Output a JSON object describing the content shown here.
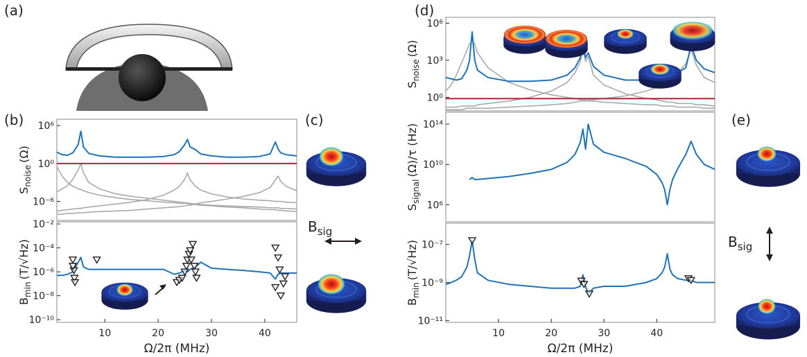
{
  "panel_labels": [
    "(a)",
    "(b)",
    "(c)",
    "(d)",
    "(e)"
  ],
  "bsig_labels": [
    {
      "main": "B",
      "sub": "sig"
    },
    {
      "main": "B",
      "sub": "sig"
    }
  ],
  "chart_data": [
    {
      "type": "line",
      "ylog": true,
      "xlim": [
        1,
        46
      ],
      "ylim": [
        1e-09,
        10000000.0
      ],
      "yticks": [
        {
          "value": 1000000,
          "label": "10⁶"
        },
        {
          "value": 1,
          "label": "10⁰"
        },
        {
          "value": 1e-06,
          "label": "10⁻⁶"
        }
      ],
      "ylabel": {
        "main": "S",
        "sub": "noise",
        "rest": "(Ω)"
      },
      "x": [
        1,
        2,
        3,
        4,
        5,
        5.5,
        6,
        7,
        9,
        12,
        15,
        18,
        21,
        23,
        24,
        25,
        25.5,
        26,
        27,
        28,
        30,
        33,
        36,
        39,
        41,
        42,
        42.5,
        43,
        44,
        46
      ],
      "series": [
        {
          "color": "#a9a9a9",
          "values": [
            3.2e-05,
            0.0001,
            0.00032,
            0.0032,
            0.1,
            1,
            0.032,
            0.001,
            0.0001,
            1.6e-05,
            6.3e-06,
            3.2e-06,
            1.6e-06,
            1e-06,
            7.9e-07,
            6.3e-07,
            6.3e-07,
            5e-07,
            4e-07,
            3.2e-07,
            2.5e-07,
            2e-07,
            1.6e-07,
            1.3e-07,
            1e-07,
            1e-07,
            1e-07,
            7.9e-08,
            7.9e-08,
            6.3e-08
          ]
        },
        {
          "color": "#a9a9a9",
          "values": [
            3.2e-08,
            4e-08,
            5e-08,
            6.3e-08,
            7.9e-08,
            7.9e-08,
            1e-07,
            1.3e-07,
            2e-07,
            4e-07,
            7.9e-07,
            2e-06,
            1e-05,
            6.3e-05,
            0.00025,
            0.0032,
            0.032,
            0.0025,
            0.00025,
            6.3e-05,
            1.6e-05,
            5e-06,
            2.5e-06,
            1.6e-06,
            1.3e-06,
            1e-06,
            1e-06,
            1e-06,
            7.9e-07,
            6.3e-07
          ]
        },
        {
          "color": "#a9a9a9",
          "values": [
            1e-08,
            1e-08,
            1.3e-08,
            1.3e-08,
            1.6e-08,
            1.6e-08,
            1.6e-08,
            2e-08,
            2.5e-08,
            3.2e-08,
            4e-08,
            6.3e-08,
            1e-07,
            1.3e-07,
            1.6e-07,
            2e-07,
            2.5e-07,
            2.5e-07,
            4e-07,
            6.3e-07,
            1e-06,
            2.5e-06,
            6.3e-06,
            2.5e-05,
            0.00016,
            0.0025,
            0.01,
            0.0016,
            0.00025,
            5e-05
          ]
        },
        {
          "color": "#a9a9a9",
          "values": [
            0.32,
            0.01,
            0.001,
            0.00025,
            0.0001,
            7.9e-05,
            5e-05,
            2.5e-05,
            1e-05,
            4e-06,
            2e-06,
            1.3e-06,
            7.9e-07,
            6.3e-07,
            5e-07,
            5e-07,
            5e-07,
            4e-07,
            3.2e-07,
            2.5e-07,
            2e-07,
            1.3e-07,
            1e-07,
            6.3e-08,
            5e-08,
            5e-08,
            4e-08,
            4e-08,
            3.2e-08,
            2.5e-08
          ]
        },
        {
          "color": "#b0233a",
          "values": [
            1,
            1,
            1,
            1,
            1,
            1,
            1,
            1,
            1,
            1,
            1,
            1,
            1,
            1,
            1,
            1,
            1,
            1,
            1,
            1,
            1,
            1,
            1,
            1,
            1,
            1,
            1,
            1,
            1,
            1
          ]
        },
        {
          "color": "#1f72b5",
          "values": [
            63,
            25,
            20,
            50,
            1000,
            126000,
            400,
            40,
            16,
            10,
            10,
            10,
            13,
            25,
            79,
            1000,
            6300,
            400,
            160,
            32,
            16,
            10,
            10,
            13,
            32,
            2500,
            200,
            50,
            25,
            16
          ]
        }
      ]
    },
    {
      "type": "line",
      "ylog": true,
      "xlim": [
        1,
        46
      ],
      "ylim": [
        6e-11,
        0.015
      ],
      "yticks": [
        {
          "value": 0.01,
          "label": "10⁻²"
        },
        {
          "value": 0.0001,
          "label": "10⁻⁴"
        },
        {
          "value": 1e-06,
          "label": "10⁻⁶"
        },
        {
          "value": 1e-08,
          "label": "10⁻⁸"
        },
        {
          "value": 1e-10,
          "label": "10⁻¹⁰"
        }
      ],
      "xticks": [
        10,
        20,
        30,
        40
      ],
      "xlabel": "Ω/2π (MHz)",
      "ylabel": {
        "main": "B",
        "sub": "min",
        "rest": "(T/√Hz)"
      },
      "x": [
        1,
        2,
        3,
        4,
        5,
        5.5,
        6,
        7,
        9,
        12,
        15,
        18,
        21,
        23,
        24,
        25,
        25.5,
        26,
        27,
        28,
        30,
        33,
        36,
        39,
        41,
        42,
        42.5,
        43,
        44,
        46
      ],
      "series": [
        {
          "color": "#1f72b5",
          "values": [
            5e-07,
            5e-07,
            6.3e-07,
            1e-06,
            6.3e-06,
            1.6e-05,
            2.5e-06,
            1.6e-06,
            1.6e-06,
            1.6e-06,
            1.6e-06,
            1.6e-06,
            1.6e-06,
            6.3e-07,
            7.9e-07,
            1.3e-06,
            1e-06,
            1.6e-06,
            2.5e-06,
            6.3e-06,
            2e-06,
            1.6e-06,
            1.3e-06,
            1e-06,
            7.9e-07,
            2.5e-07,
            6.3e-07,
            7.9e-07,
            7.9e-07,
            7.9e-07
          ]
        },
        {
          "color": "#231f20",
          "marker": "triangle",
          "x": [
            4,
            4.2,
            4,
            4.3,
            4.4,
            8.5,
            23.5,
            24,
            24.5,
            25,
            25.3,
            25.5,
            25.8,
            26,
            26.5,
            26.8,
            27,
            27.2,
            26.2,
            42,
            42.5,
            42.8,
            42,
            43.5,
            43,
            43.8
          ],
          "values": [
            1e-05,
            1.3e-06,
            3e-06,
            3e-07,
            1.3e-07,
            1e-05,
            1.3e-07,
            2e-07,
            3e-07,
            1e-06,
            3e-06,
            1e-05,
            3e-05,
            6e-05,
            0.0002,
            3e-06,
            1e-06,
            3e-07,
            1e-05,
            0.0001,
            1.5e-05,
            1.5e-06,
            5e-08,
            1e-07,
            1e-08,
            4e-07
          ]
        }
      ]
    },
    {
      "type": "line",
      "ylog": true,
      "xlim": [
        0,
        51
      ],
      "ylim": [
        0.08,
        3000000.0
      ],
      "yticks": [
        {
          "value": 1000000,
          "label": "10⁶"
        },
        {
          "value": 1000,
          "label": "10³"
        },
        {
          "value": 1,
          "label": "10⁰"
        }
      ],
      "ylabel": {
        "main": "S",
        "sub": "noise",
        "rest": "(Ω)"
      },
      "x": [
        0,
        1,
        2,
        3,
        4,
        4.5,
        5,
        5.5,
        6,
        8,
        12,
        16,
        20,
        23,
        24.5,
        25.5,
        26,
        26.5,
        27,
        28,
        30,
        34,
        38,
        40,
        41,
        41.5,
        42,
        42.5,
        43,
        44,
        45.5,
        46.5,
        47.5,
        49,
        51
      ],
      "series": [
        {
          "color": "#a9a9a9",
          "values": [
            3.2,
            10,
            63,
            630,
            6300,
            20000,
            40000,
            20000,
            4000,
            250,
            16,
            4,
            1.6,
            1,
            0.8,
            0.63,
            0.63,
            0.63,
            0.5,
            0.5,
            0.4,
            0.32,
            0.25,
            0.25,
            0.2,
            0.2,
            0.2,
            0.2,
            0.2,
            0.16,
            0.16,
            0.16,
            0.16,
            0.13,
            0.13
          ]
        },
        {
          "color": "#a9a9a9",
          "values": [
            0.16,
            0.16,
            0.16,
            0.2,
            0.2,
            0.2,
            0.2,
            0.2,
            0.25,
            0.32,
            0.5,
            1,
            3.2,
            16,
            100,
            800,
            8000,
            800,
            2000,
            63,
            10,
            2,
            0.8,
            0.63,
            0.5,
            0.5,
            0.4,
            0.4,
            0.4,
            0.32,
            0.32,
            0.32,
            0.25,
            0.25,
            0.2
          ]
        },
        {
          "color": "#a9a9a9",
          "values": [
            0.1,
            0.1,
            0.1,
            0.1,
            0.13,
            0.13,
            0.13,
            0.13,
            0.13,
            0.13,
            0.16,
            0.2,
            0.25,
            0.32,
            0.4,
            0.5,
            0.5,
            0.5,
            0.63,
            0.63,
            0.8,
            1.3,
            3.2,
            6.3,
            10,
            13,
            20,
            32,
            50,
            100,
            500,
            8000,
            400,
            40,
            16
          ]
        },
        {
          "color": "#b0233a",
          "values": [
            0.8,
            0.8,
            0.8,
            0.8,
            0.8,
            0.8,
            0.8,
            0.8,
            0.8,
            0.8,
            0.8,
            0.8,
            0.8,
            0.8,
            0.8,
            0.8,
            0.8,
            0.8,
            0.8,
            0.8,
            0.8,
            0.8,
            0.8,
            0.8,
            0.8,
            0.8,
            0.8,
            0.8,
            0.8,
            0.8,
            0.8,
            0.8,
            0.8,
            0.8,
            0.8
          ]
        },
        {
          "color": "#1f72b5",
          "values": [
            40,
            32,
            25,
            32,
            160,
            1000,
            200000,
            1000,
            160,
            40,
            20,
            20,
            25,
            63,
            250,
            1600,
            20000,
            1600,
            4000,
            320,
            63,
            25,
            25,
            40,
            50,
            50,
            63,
            63,
            79,
            100,
            250,
            16000,
            1000,
            200,
            100
          ]
        }
      ]
    },
    {
      "type": "line",
      "ylog": true,
      "xlim": [
        0,
        51
      ],
      "ylim": [
        20000.0,
        1500000000000000.0
      ],
      "yticks": [
        {
          "value": 100000000000000.0,
          "label": "10¹⁴"
        },
        {
          "value": 10000000000.0,
          "label": "10¹⁰"
        },
        {
          "value": 1000000,
          "label": "10⁶"
        }
      ],
      "ylabel": {
        "main": "S",
        "sub": "signal",
        "rest": "(Ω)/τ (Hz)"
      },
      "x": [
        0,
        1,
        2,
        3,
        4,
        4.5,
        5,
        5.5,
        6,
        8,
        12,
        16,
        20,
        23,
        24.5,
        25.5,
        26,
        26.5,
        27,
        28,
        30,
        34,
        38,
        40,
        41,
        41.5,
        42,
        42.5,
        43,
        44,
        45.5,
        46.5,
        47.5,
        49,
        51
      ],
      "series": [
        {
          "color": "#1f72b5",
          "values": [
            null,
            null,
            null,
            null,
            null,
            320000000.0,
            500000000.0,
            320000000.0,
            320000000.0,
            400000000.0,
            630000000.0,
            1300000000.0,
            3200000000.0,
            16000000000.0,
            100000000000.0,
            1600000000000.0,
            32000000000000.0,
            320000000000.0,
            100000000000000.0,
            1000000000000.0,
            160000000000.0,
            40000000000.0,
            6300000000.0,
            1000000000.0,
            160000000.0,
            32000000.0,
            1000000.0,
            32000000.0,
            320000000.0,
            4000000000.0,
            100000000000.0,
            2000000000000.0,
            100000000000.0,
            10000000000.0,
            3200000000.0
          ]
        }
      ]
    },
    {
      "type": "line",
      "ylog": true,
      "xlim": [
        0,
        51
      ],
      "ylim": [
        8e-12,
        1.3e-06
      ],
      "yticks": [
        {
          "value": 1e-07,
          "label": "10⁻⁷"
        },
        {
          "value": 1e-09,
          "label": "10⁻⁹"
        },
        {
          "value": 1e-11,
          "label": "10⁻¹¹"
        }
      ],
      "xticks": [
        10,
        20,
        30,
        40
      ],
      "xlabel": "Ω/2π (MHz)",
      "ylabel": {
        "main": "B",
        "sub": "min",
        "rest": "(T/√Hz)"
      },
      "x": [
        0,
        1,
        2,
        3,
        4,
        4.5,
        5,
        5.5,
        6,
        8,
        12,
        16,
        20,
        23,
        24.5,
        25.5,
        26,
        26.5,
        27,
        28,
        30,
        34,
        38,
        40,
        41,
        41.5,
        42,
        42.5,
        43,
        44,
        45.5,
        46.5,
        47.5,
        49,
        51
      ],
      "series": [
        {
          "color": "#1f72b5",
          "values": [
            7.9e-10,
            1e-09,
            1.3e-09,
            2e-09,
            6.3e-09,
            2.5e-08,
            1.6e-07,
            1.6e-08,
            3.2e-09,
            1.3e-09,
            7.9e-10,
            6.3e-10,
            5e-10,
            5e-10,
            5e-10,
            6.3e-10,
            2.5e-09,
            6.3e-10,
            2.5e-10,
            5e-10,
            6.3e-10,
            6.3e-10,
            1e-09,
            1.6e-09,
            3.2e-09,
            6.3e-09,
            3.2e-08,
            5e-09,
            2.5e-09,
            1.6e-09,
            1.3e-09,
            1.3e-09,
            1e-09,
            1e-09,
            1e-09
          ]
        },
        {
          "color": "#231f20",
          "marker": "triangle",
          "x": [
            5,
            25.7,
            26.2,
            27.2,
            46,
            46.5
          ],
          "values": [
            1.6e-07,
            1.2e-09,
            8e-10,
            2.5e-10,
            1.6e-09,
            1.3e-09
          ]
        }
      ]
    }
  ]
}
